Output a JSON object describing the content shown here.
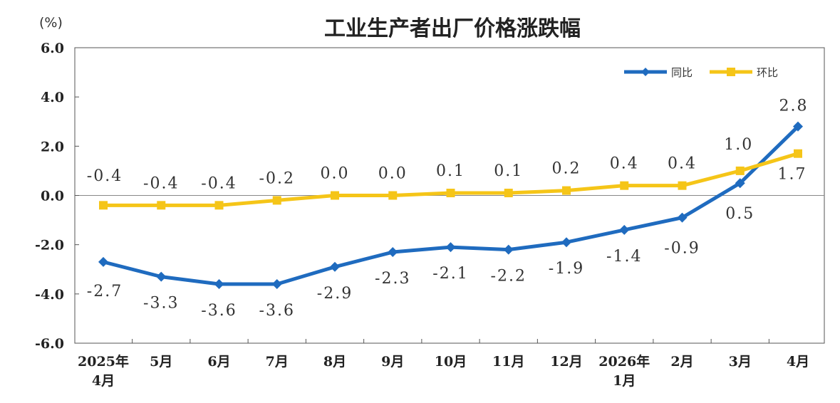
{
  "chart_data": {
    "type": "line",
    "title": "工业生产者出厂价格涨跌幅",
    "unit_label": "(%)",
    "ylim": [
      -6.0,
      6.0
    ],
    "yticks": [
      "6.0",
      "4.0",
      "2.0",
      "0.0",
      "-2.0",
      "-4.0",
      "-6.0"
    ],
    "ytick_values": [
      6,
      4,
      2,
      0,
      -2,
      -4,
      -6
    ],
    "categories": [
      [
        "2025年",
        "4月"
      ],
      [
        "5月"
      ],
      [
        "6月"
      ],
      [
        "7月"
      ],
      [
        "8月"
      ],
      [
        "9月"
      ],
      [
        "10月"
      ],
      [
        "11月"
      ],
      [
        "12月"
      ],
      [
        "2026年",
        "1月"
      ],
      [
        "2月"
      ],
      [
        "3月"
      ],
      [
        "4月"
      ]
    ],
    "legend_position": "top-right",
    "grid": false,
    "series": [
      {
        "name": "同比",
        "color": "#1f6bbf",
        "marker": "diamond",
        "values": [
          -2.7,
          -3.3,
          -3.6,
          -3.6,
          -2.9,
          -2.3,
          -2.1,
          -2.2,
          -1.9,
          -1.4,
          -0.9,
          0.5,
          2.8
        ],
        "labels": [
          "-2.7",
          "-3.3",
          "-3.6",
          "-3.6",
          "-2.9",
          "-2.3",
          "-2.1",
          "-2.2",
          "-1.9",
          "-1.4",
          "-0.9",
          "0.5",
          "2.8"
        ]
      },
      {
        "name": "环比",
        "color": "#f5c518",
        "marker": "square",
        "values": [
          -0.4,
          -0.4,
          -0.4,
          -0.2,
          0.0,
          0.0,
          0.1,
          0.1,
          0.2,
          0.4,
          0.4,
          1.0,
          1.7
        ],
        "labels": [
          "-0.4",
          "-0.4",
          "-0.4",
          "-0.2",
          "0.0",
          "0.0",
          "0.1",
          "0.1",
          "0.2",
          "0.4",
          "0.4",
          "1.0",
          "1.7"
        ]
      }
    ]
  }
}
